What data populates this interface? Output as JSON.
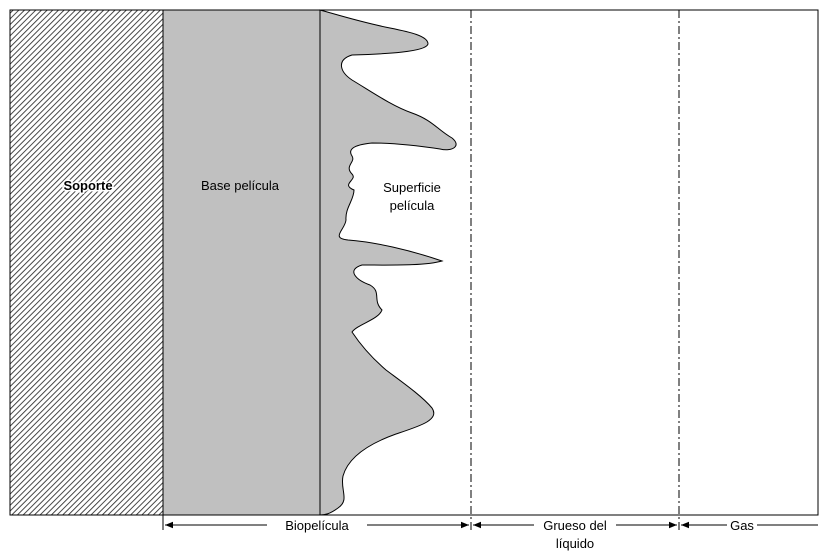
{
  "labels": {
    "support": "Soporte",
    "film_base": "Base película",
    "film_surface": [
      "Superficie",
      "película"
    ]
  },
  "dimensions": {
    "biofilm": "Biopelícula",
    "liquid_thickness": [
      "Grueso del",
      "líquido"
    ],
    "gas": "Gas"
  }
}
